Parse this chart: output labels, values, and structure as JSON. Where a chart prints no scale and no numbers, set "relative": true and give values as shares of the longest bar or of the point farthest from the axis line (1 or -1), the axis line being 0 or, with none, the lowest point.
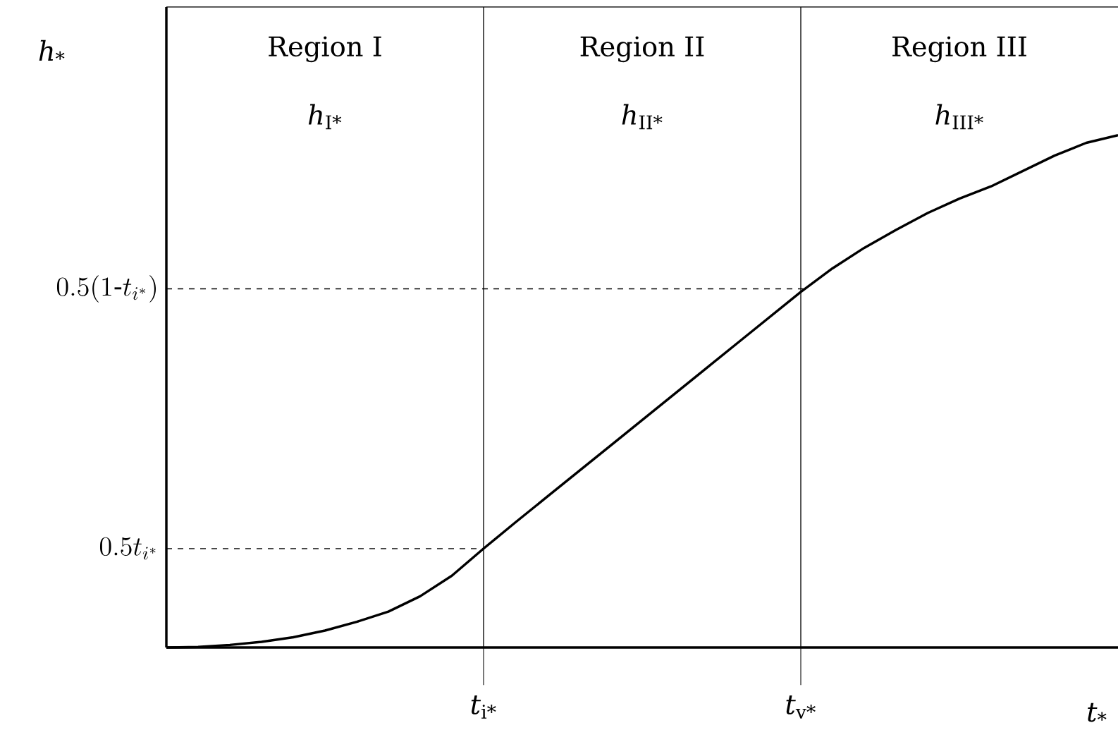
{
  "chart_data": {
    "type": "line",
    "relative": true,
    "xlabel": "*t*$_{*}$",
    "ylabel": "*h*$_{*}$",
    "categories": [
      null,
      null,
      null,
      null,
      null,
      null,
      null,
      null,
      null,
      null,
      "*t*$_{i*}$",
      null,
      null,
      null,
      null,
      null,
      null,
      null,
      null,
      null,
      "*t*$_{v*}$",
      null,
      null,
      null,
      null,
      null,
      null,
      null,
      null,
      null,
      null
    ],
    "series": [
      {
        "color": "#000000",
        "values": [
          0,
          0.001,
          0.005,
          0.011,
          0.02,
          0.033,
          0.05,
          0.07,
          0.1,
          0.14,
          0.193,
          0.244,
          0.294,
          0.344,
          0.394,
          0.444,
          0.494,
          0.544,
          0.594,
          0.644,
          0.694,
          0.74,
          0.78,
          0.815,
          0.848,
          0.876,
          0.9,
          0.93,
          0.96,
          0.985,
          1.0
        ]
      }
    ],
    "line_style": "solid",
    "marker": "none",
    "ref_lines": [
      {
        "axis": "x",
        "value": "*t*$_{i*}$",
        "line_style": "solid"
      },
      {
        "axis": "x",
        "value": "*t*$_{v*}$",
        "line_style": "solid"
      },
      {
        "axis": "y",
        "value": 0.193,
        "label": "0.5t_{i^*}",
        "line_style": "dashed"
      },
      {
        "axis": "y",
        "value": 0.7,
        "label": "0.5(1\\text{-}t_{i^*})",
        "line_style": "dashed"
      }
    ],
    "annotations": [
      "Region I",
      "Region II",
      "Region III",
      "*h*$_{I*}$",
      "*h*$_{II*}$",
      "*h*$_{III*}$"
    ]
  }
}
